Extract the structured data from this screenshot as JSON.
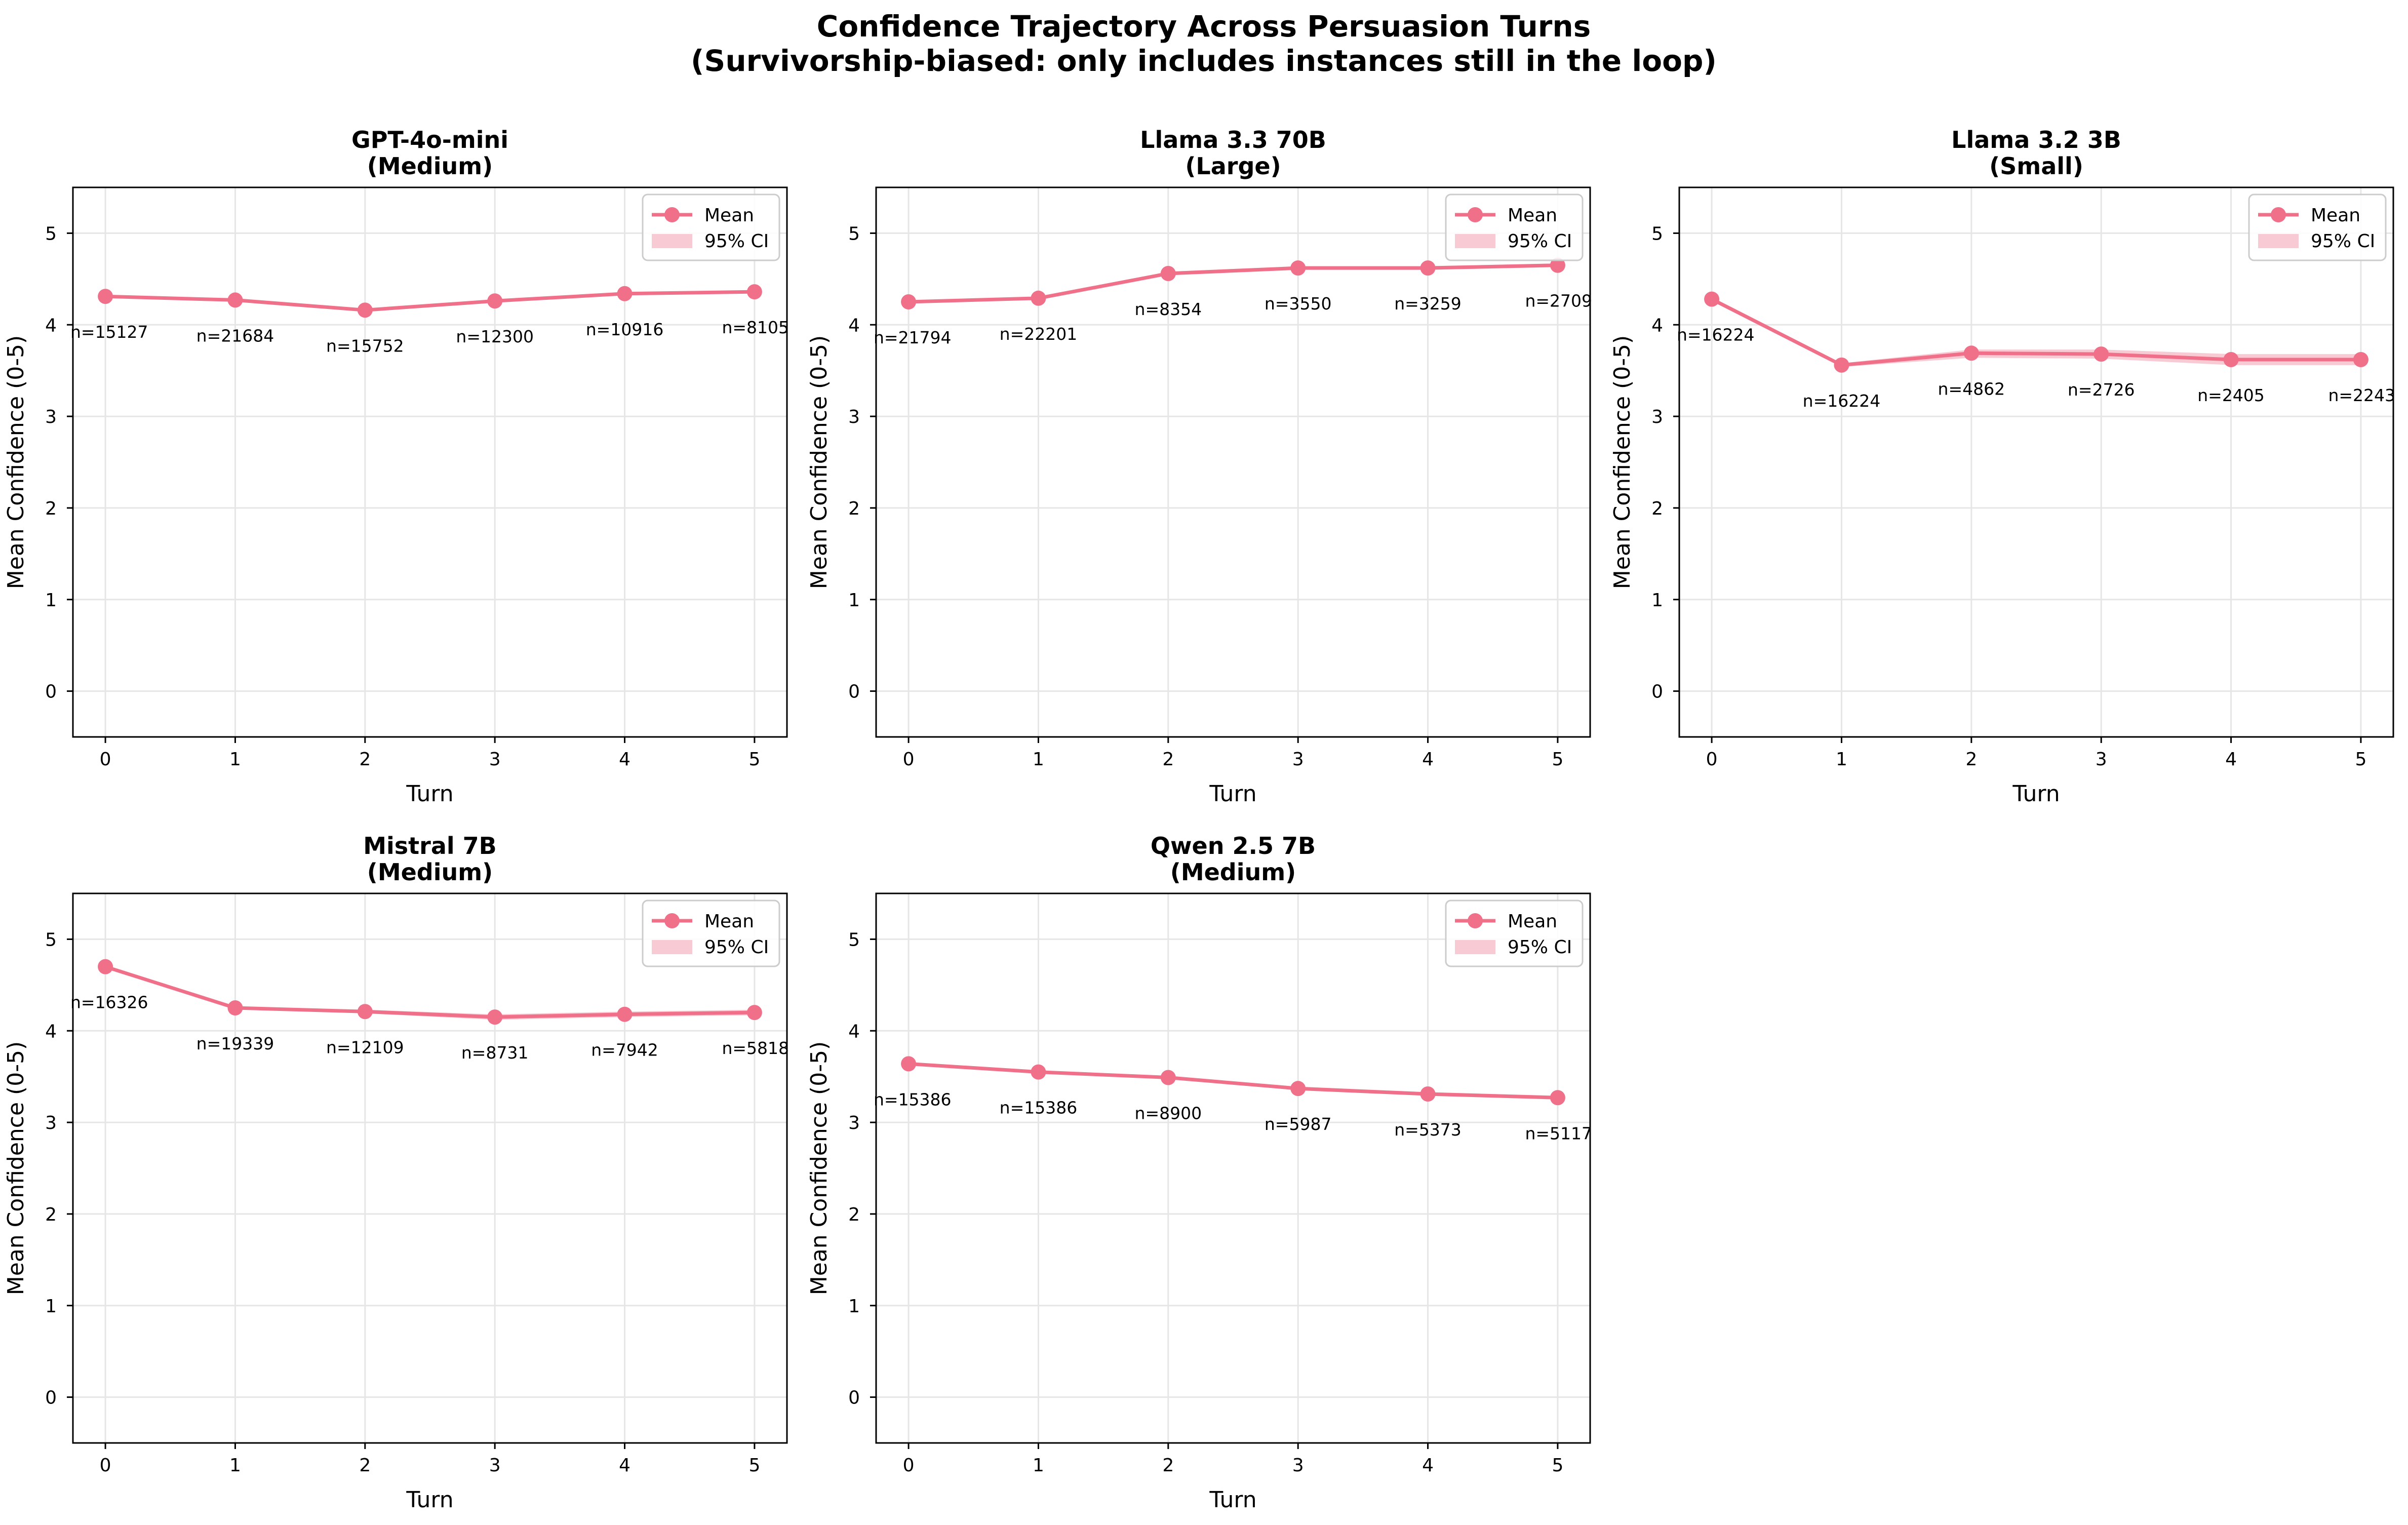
{
  "title_line1": "Confidence Trajectory Across Persuasion Turns",
  "title_line2": "(Survivorship-biased: only includes instances still in the loop)",
  "colors": {
    "line": "#f0708a",
    "ci": "#f6b8c4",
    "grid": "#e6e6e6",
    "axis": "#000000"
  },
  "legend": {
    "mean": "Mean",
    "ci": "95% CI"
  },
  "chart_data": [
    {
      "type": "line",
      "title": "GPT-4o-mini",
      "subtitle": "(Medium)",
      "xlabel": "Turn",
      "ylabel": "Mean Confidence (0-5)",
      "xlim": [
        -0.25,
        5.25
      ],
      "ylim": [
        -0.5,
        5.5
      ],
      "xticks": [
        "0",
        "1",
        "2",
        "3",
        "4",
        "5"
      ],
      "yticks": [
        "0",
        "1",
        "2",
        "3",
        "4",
        "5"
      ],
      "x": [
        0,
        1,
        2,
        3,
        4,
        5
      ],
      "mean": [
        4.31,
        4.27,
        4.16,
        4.26,
        4.34,
        4.36
      ],
      "ci_low": [
        4.3,
        4.26,
        4.15,
        4.25,
        4.33,
        4.35
      ],
      "ci_high": [
        4.32,
        4.28,
        4.17,
        4.27,
        4.35,
        4.37
      ],
      "n_labels": [
        "n=15127",
        "n=21684",
        "n=15752",
        "n=12300",
        "n=10916",
        "n=8105"
      ]
    },
    {
      "type": "line",
      "title": "Llama 3.3 70B",
      "subtitle": "(Large)",
      "xlabel": "Turn",
      "ylabel": "Mean Confidence (0-5)",
      "xlim": [
        -0.25,
        5.25
      ],
      "ylim": [
        -0.5,
        5.5
      ],
      "xticks": [
        "0",
        "1",
        "2",
        "3",
        "4",
        "5"
      ],
      "yticks": [
        "0",
        "1",
        "2",
        "3",
        "4",
        "5"
      ],
      "x": [
        0,
        1,
        2,
        3,
        4,
        5
      ],
      "mean": [
        4.25,
        4.29,
        4.56,
        4.62,
        4.62,
        4.65
      ],
      "ci_low": [
        4.24,
        4.28,
        4.54,
        4.6,
        4.6,
        4.63
      ],
      "ci_high": [
        4.26,
        4.3,
        4.58,
        4.64,
        4.64,
        4.67
      ],
      "n_labels": [
        "n=21794",
        "n=22201",
        "n=8354",
        "n=3550",
        "n=3259",
        "n=2709"
      ]
    },
    {
      "type": "line",
      "title": "Llama 3.2 3B",
      "subtitle": "(Small)",
      "xlabel": "Turn",
      "ylabel": "Mean Confidence (0-5)",
      "xlim": [
        -0.25,
        5.25
      ],
      "ylim": [
        -0.5,
        5.5
      ],
      "xticks": [
        "0",
        "1",
        "2",
        "3",
        "4",
        "5"
      ],
      "yticks": [
        "0",
        "1",
        "2",
        "3",
        "4",
        "5"
      ],
      "x": [
        0,
        1,
        2,
        3,
        4,
        5
      ],
      "mean": [
        4.28,
        3.56,
        3.69,
        3.68,
        3.62,
        3.62
      ],
      "ci_low": [
        4.26,
        3.54,
        3.64,
        3.63,
        3.56,
        3.56
      ],
      "ci_high": [
        4.3,
        3.58,
        3.73,
        3.73,
        3.68,
        3.68
      ],
      "n_labels": [
        "n=16224",
        "n=16224",
        "n=4862",
        "n=2726",
        "n=2405",
        "n=2243"
      ]
    },
    {
      "type": "line",
      "title": "Mistral 7B",
      "subtitle": "(Medium)",
      "xlabel": "Turn",
      "ylabel": "Mean Confidence (0-5)",
      "xlim": [
        -0.25,
        5.25
      ],
      "ylim": [
        -0.5,
        5.5
      ],
      "xticks": [
        "0",
        "1",
        "2",
        "3",
        "4",
        "5"
      ],
      "yticks": [
        "0",
        "1",
        "2",
        "3",
        "4",
        "5"
      ],
      "x": [
        0,
        1,
        2,
        3,
        4,
        5
      ],
      "mean": [
        4.7,
        4.25,
        4.21,
        4.15,
        4.18,
        4.2
      ],
      "ci_low": [
        4.69,
        4.24,
        4.19,
        4.12,
        4.15,
        4.17
      ],
      "ci_high": [
        4.71,
        4.26,
        4.23,
        4.18,
        4.21,
        4.23
      ],
      "n_labels": [
        "n=16326",
        "n=19339",
        "n=12109",
        "n=8731",
        "n=7942",
        "n=5818"
      ]
    },
    {
      "type": "line",
      "title": "Qwen 2.5 7B",
      "subtitle": "(Medium)",
      "xlabel": "Turn",
      "ylabel": "Mean Confidence (0-5)",
      "xlim": [
        -0.25,
        5.25
      ],
      "ylim": [
        -0.5,
        5.5
      ],
      "xticks": [
        "0",
        "1",
        "2",
        "3",
        "4",
        "5"
      ],
      "yticks": [
        "0",
        "1",
        "2",
        "3",
        "4",
        "5"
      ],
      "x": [
        0,
        1,
        2,
        3,
        4,
        5
      ],
      "mean": [
        3.64,
        3.55,
        3.49,
        3.37,
        3.31,
        3.27
      ],
      "ci_low": [
        3.63,
        3.54,
        3.48,
        3.35,
        3.29,
        3.25
      ],
      "ci_high": [
        3.65,
        3.56,
        3.5,
        3.39,
        3.33,
        3.29
      ],
      "n_labels": [
        "n=15386",
        "n=15386",
        "n=8900",
        "n=5987",
        "n=5373",
        "n=5117"
      ]
    }
  ]
}
